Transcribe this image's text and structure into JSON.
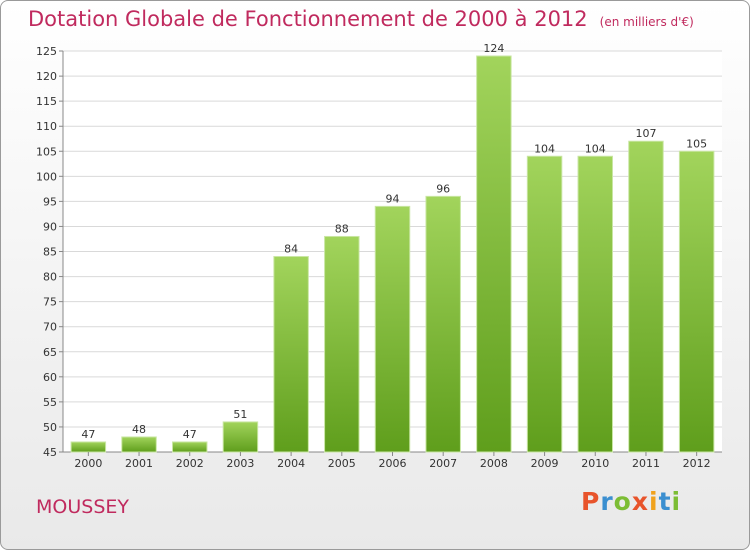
{
  "chart_data": {
    "type": "bar",
    "title": "Dotation Globale de Fonctionnement de 2000 à 2012",
    "subtitle": "(en milliers d'€)",
    "categories": [
      "2000",
      "2001",
      "2002",
      "2003",
      "2004",
      "2005",
      "2006",
      "2007",
      "2008",
      "2009",
      "2010",
      "2011",
      "2012"
    ],
    "values": [
      47,
      48,
      47,
      51,
      84,
      88,
      94,
      96,
      124,
      104,
      104,
      107,
      105
    ],
    "ylim": [
      45,
      125
    ],
    "yticks": [
      45,
      50,
      55,
      60,
      65,
      70,
      75,
      80,
      85,
      90,
      95,
      100,
      105,
      110,
      115,
      120,
      125
    ],
    "grid": true,
    "bar_color": "#7cbf2e",
    "bar_color_light": "#a2d45c",
    "bar_color_dark": "#5f9e1c"
  },
  "footer": {
    "commune": "MOUSSEY",
    "brand": "Proxiti"
  },
  "colors": {
    "title": "#c02a5e",
    "grid": "#d9d9d9"
  }
}
